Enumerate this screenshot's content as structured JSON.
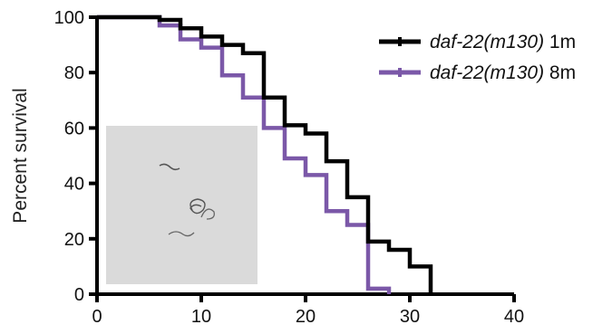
{
  "chart_data": {
    "type": "line",
    "step": true,
    "title": "",
    "xlabel": "",
    "ylabel": "Percent survival",
    "xlim": [
      0,
      40
    ],
    "ylim": [
      0,
      100
    ],
    "x_ticks": [
      0,
      10,
      20,
      30,
      40
    ],
    "y_ticks": [
      0,
      20,
      40,
      60,
      80,
      100
    ],
    "grid": false,
    "legend_position": "top-right",
    "series": [
      {
        "name_italic": "daf-22(m130)",
        "name_suffix": " 1m",
        "color": "#000000",
        "x": [
          0,
          6,
          8,
          10,
          12,
          14,
          16,
          18,
          20,
          22,
          24,
          26,
          28,
          30,
          32
        ],
        "y": [
          100,
          99,
          96,
          93,
          90,
          87,
          71,
          61,
          58,
          48,
          35,
          19,
          16,
          10,
          0
        ]
      },
      {
        "name_italic": "daf-22(m130)",
        "name_suffix": " 8m",
        "color": "#7b58a8",
        "x": [
          0,
          6,
          8,
          10,
          12,
          14,
          16,
          18,
          20,
          22,
          24,
          26,
          28
        ],
        "y": [
          100,
          97,
          92,
          89,
          79,
          71,
          60,
          49,
          43,
          30,
          25,
          2,
          0
        ]
      }
    ]
  },
  "inset": {
    "description_icon": "worm-micrograph-inset",
    "background": "#d9d9d9"
  }
}
